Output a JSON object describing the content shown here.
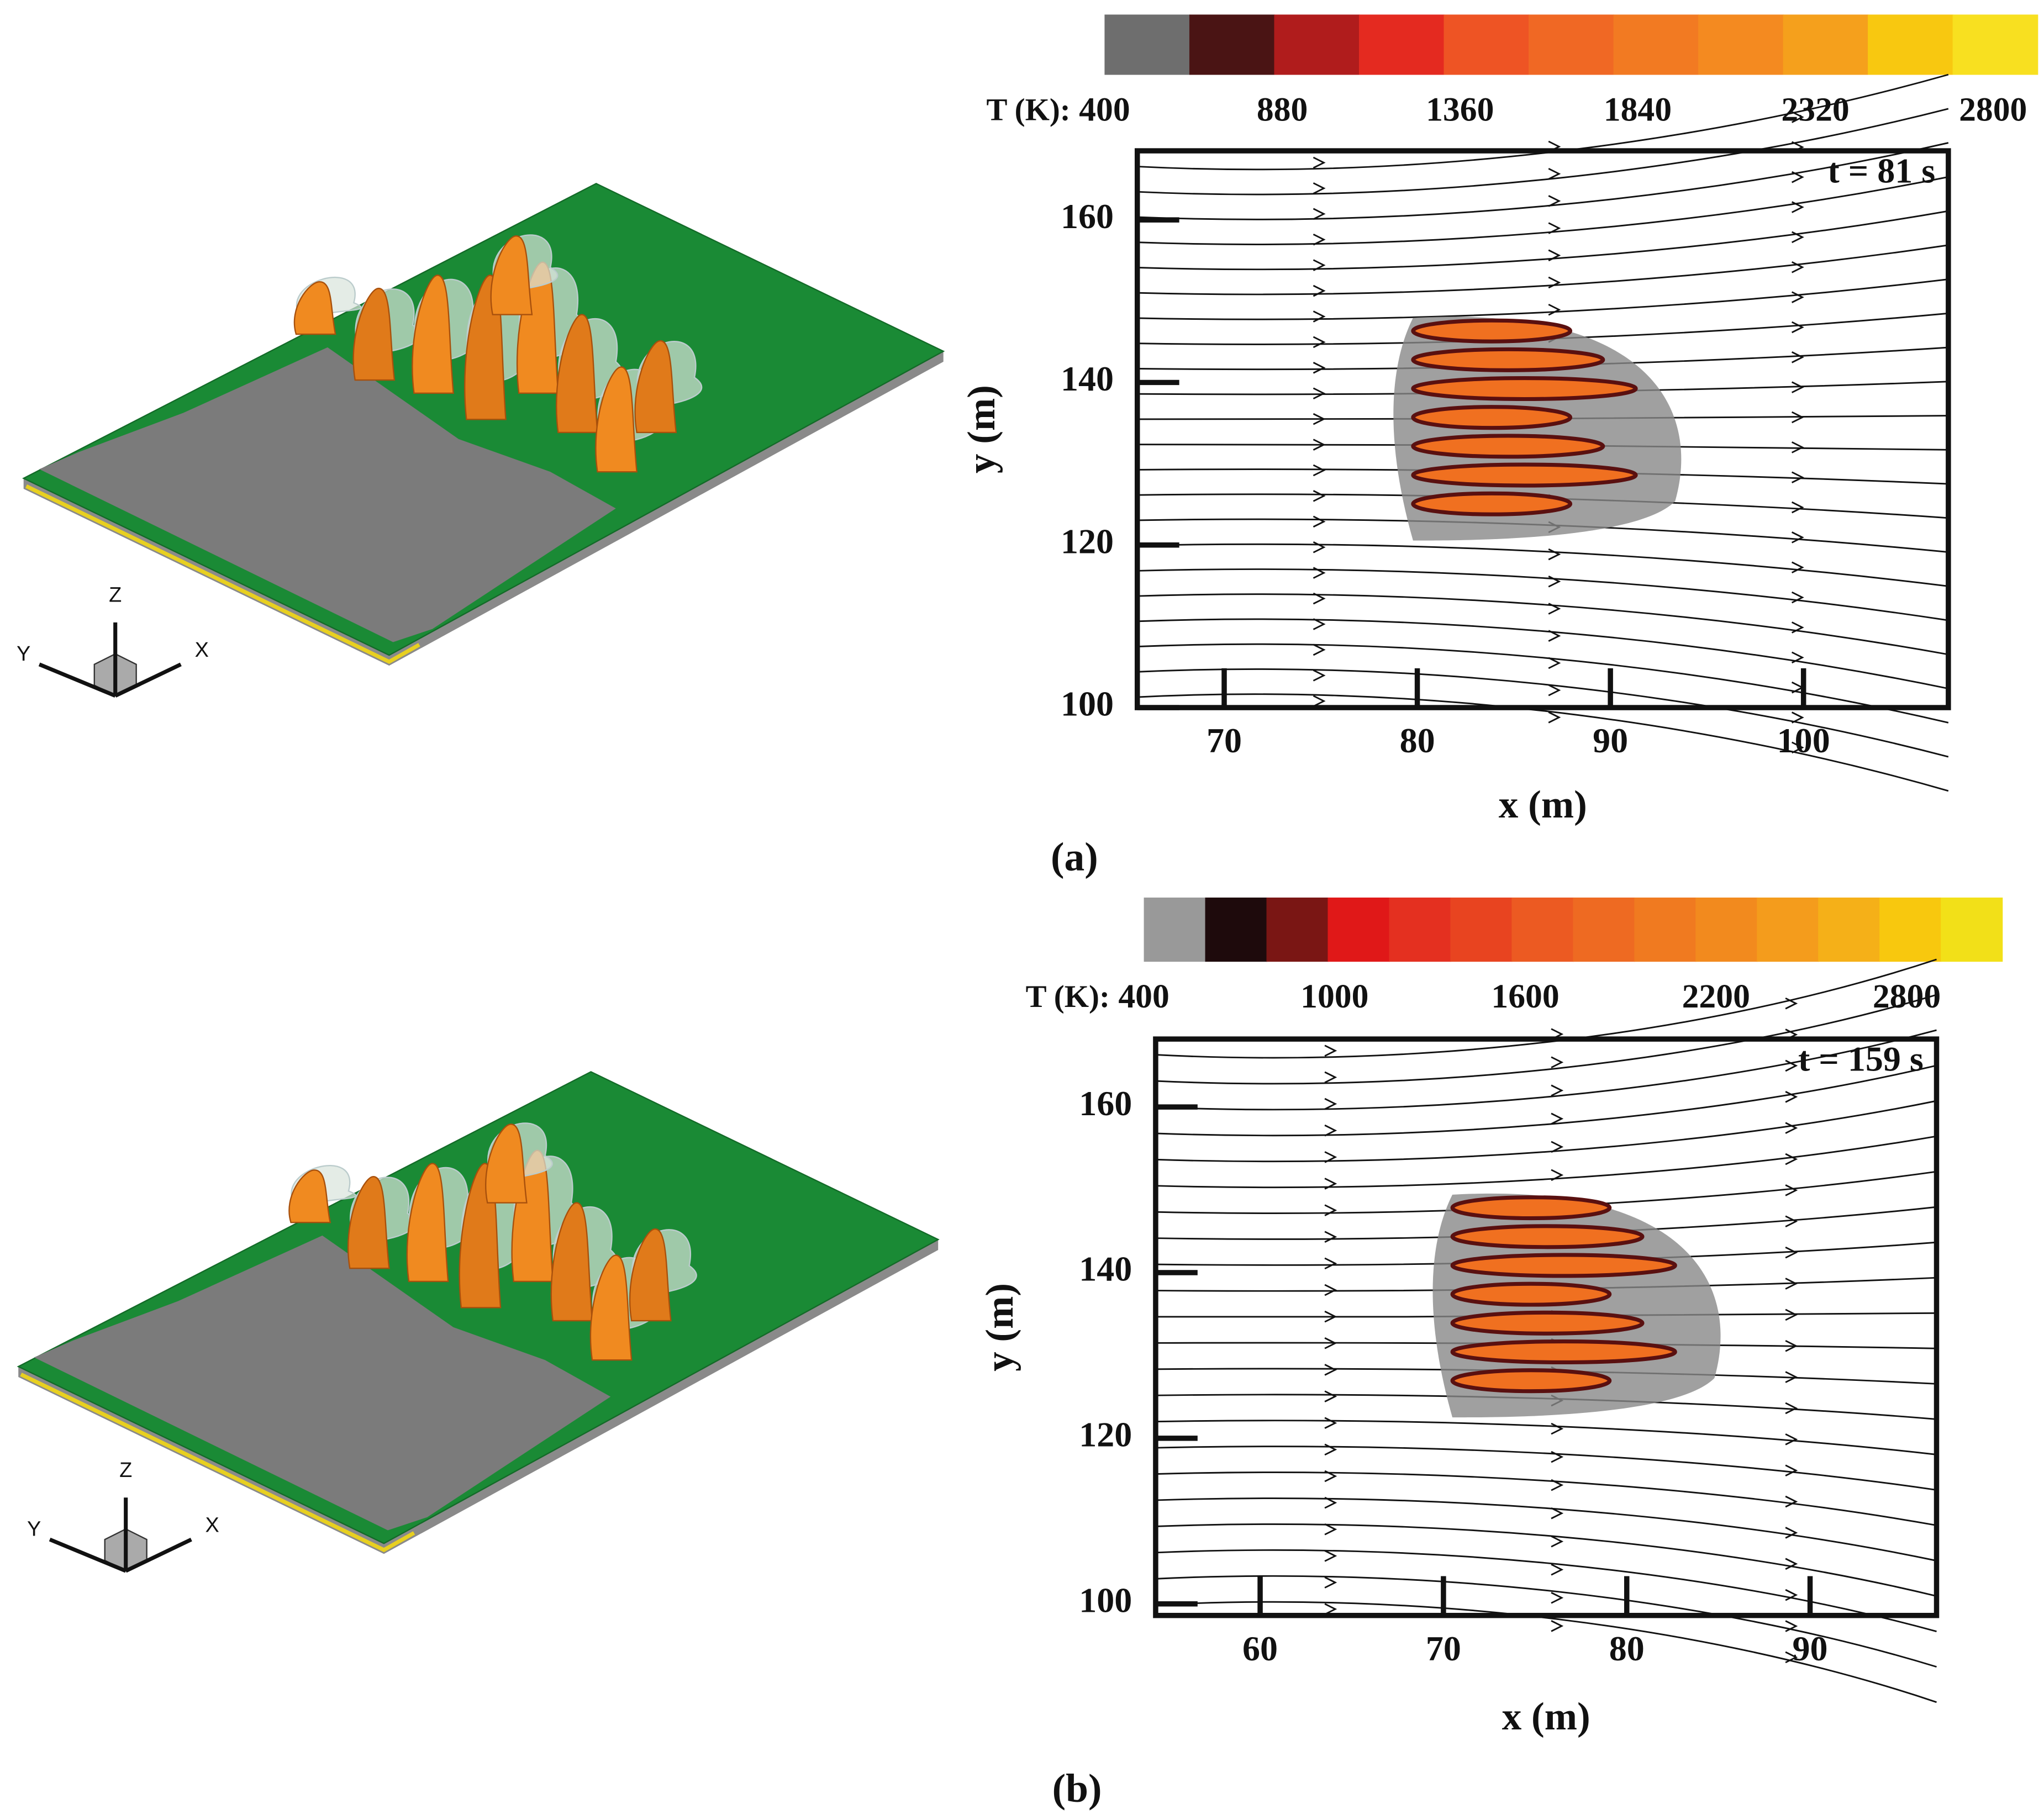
{
  "chart_data": [
    {
      "type": "streamline",
      "panel_label": "(a)",
      "annotation": "t = 81 s",
      "xlabel": "x (m)",
      "ylabel": "y (m)",
      "xlim": [
        65.5,
        107.5
      ],
      "ylim": [
        100,
        168.5
      ],
      "xticks": [
        70,
        80,
        90,
        100
      ],
      "yticks": [
        100,
        120,
        140,
        160
      ],
      "colorbar": {
        "label": "T (K):",
        "lim": [
          400,
          2920
        ],
        "ticks": [
          400,
          880,
          1360,
          1840,
          2320,
          2800
        ],
        "colors": [
          "#6e6e6e",
          "#4a1414",
          "#b01c1c",
          "#e42a20",
          "#ee5424",
          "#f06824",
          "#f27a22",
          "#f48a20",
          "#f5a01c",
          "#f8c810",
          "#f8e020"
        ]
      },
      "triad_labels": [
        "Z",
        "Y",
        "X"
      ]
    },
    {
      "type": "streamline",
      "panel_label": "(b)",
      "annotation": "t = 159 s",
      "xlabel": "x (m)",
      "ylabel": "y (m)",
      "xlim": [
        54.3,
        96.9
      ],
      "ylim": [
        98.6,
        168.2
      ],
      "xticks": [
        60,
        70,
        80,
        90
      ],
      "yticks": [
        100,
        120,
        140,
        160
      ],
      "colorbar": {
        "label": "T (K):",
        "lim": [
          400,
          3100
        ],
        "ticks": [
          400,
          1000,
          1600,
          2200,
          2800
        ],
        "colors": [
          "#999999",
          "#1e0a0c",
          "#7a1614",
          "#e01818",
          "#e43020",
          "#e84420",
          "#ec5a22",
          "#ee6a22",
          "#f07a20",
          "#f28a1e",
          "#f49c1c",
          "#f5b018",
          "#f8c80e",
          "#f2e018"
        ]
      },
      "triad_labels": [
        "Z",
        "Y",
        "X"
      ]
    }
  ]
}
